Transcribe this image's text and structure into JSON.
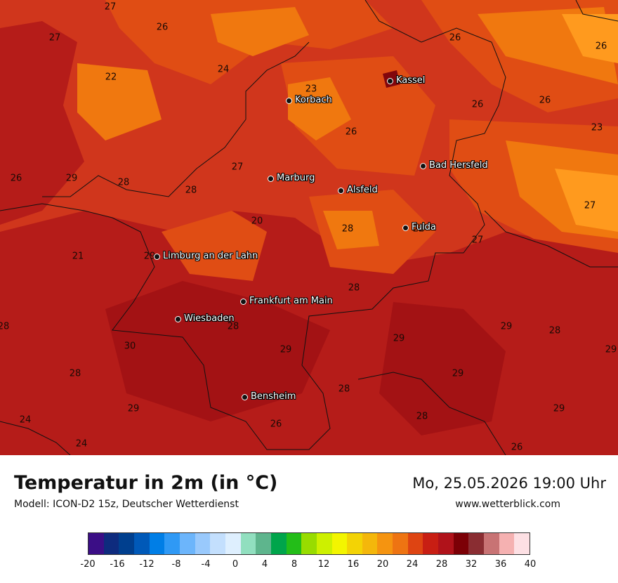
{
  "title": "Temperatur in 2m (in °C)",
  "model": "Modell: ICON-D2 15z, Deutscher Wetterdienst",
  "datetime": "Mo, 25.05.2026 19:00 Uhr",
  "website": "www.wetterblick.com",
  "colors": {
    "t20": "#ff9a1e",
    "t22": "#f0780f",
    "t24": "#e04d14",
    "t26": "#d0361c",
    "t28": "#b51c19",
    "t30": "#a31214",
    "t32": "#82060c",
    "border": "#111111"
  },
  "cities": [
    {
      "name": "Kassel"
    },
    {
      "name": "Korbach"
    },
    {
      "name": "Bad Hersfeld"
    },
    {
      "name": "Marburg"
    },
    {
      "name": "Alsfeld"
    },
    {
      "name": "Fulda"
    },
    {
      "name": "Limburg an der Lahn"
    },
    {
      "name": "Frankfurt am Main"
    },
    {
      "name": "Wiesbaden"
    },
    {
      "name": "Bensheim"
    }
  ],
  "temperature_labels": [
    "27",
    "26",
    "27",
    "26",
    "26",
    "24",
    "22",
    "23",
    "26",
    "26",
    "26",
    "23",
    "26",
    "27",
    "29",
    "28",
    "28",
    "27",
    "20",
    "28",
    "22",
    "27",
    "21",
    "29",
    "28",
    "28",
    "29",
    "28",
    "28",
    "30",
    "29",
    "29",
    "29",
    "28",
    "29",
    "28",
    "29",
    "24",
    "24",
    "26",
    "28",
    "29",
    "26"
  ],
  "legend": {
    "colors": [
      "#3b0e86",
      "#0e2b7e",
      "#003f8e",
      "#0059b8",
      "#007ee6",
      "#2f99f5",
      "#6cb5fb",
      "#99c9fc",
      "#c3dffd",
      "#deeffe",
      "#91dfbf",
      "#5eb58d",
      "#00a54b",
      "#23bd18",
      "#98dc00",
      "#cdf000",
      "#f3f500",
      "#f3d305",
      "#f4b70b",
      "#f59410",
      "#ee7412",
      "#de4412",
      "#c81e13",
      "#b0121a",
      "#7c0006",
      "#8a2d32",
      "#c87374",
      "#f5b1b1",
      "#fde0e4"
    ],
    "ticks": [
      "-20",
      "-16",
      "-12",
      "-8",
      "-4",
      "0",
      "4",
      "8",
      "12",
      "16",
      "20",
      "24",
      "28",
      "32",
      "36",
      "40"
    ]
  }
}
